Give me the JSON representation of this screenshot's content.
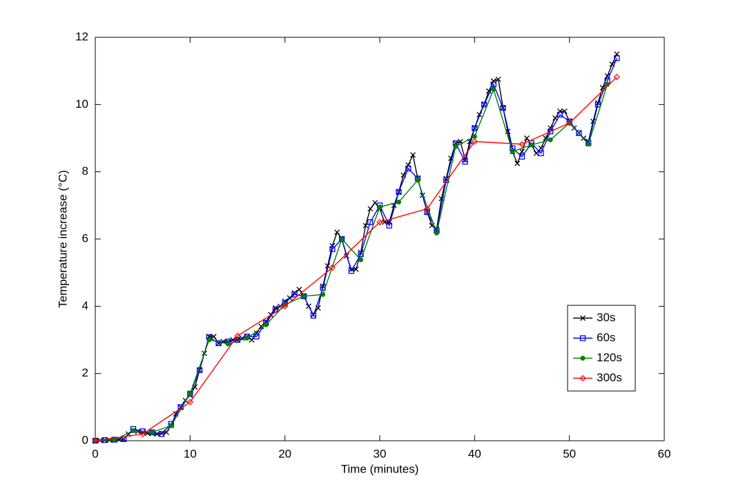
{
  "chart_data": {
    "type": "line",
    "xlabel": "Time (minutes)",
    "ylabel": "Temperature increase (°C)",
    "xlim": [
      0,
      60
    ],
    "xticks": [
      0,
      10,
      20,
      30,
      40,
      50,
      60
    ],
    "ylim": [
      0,
      12
    ],
    "yticks": [
      0,
      2,
      4,
      6,
      8,
      10,
      12
    ],
    "grid": false,
    "legend": "lower right",
    "series": [
      {
        "name": "30s",
        "color": "#000000",
        "marker": "x",
        "x": [
          0,
          0.5,
          1,
          1.5,
          2,
          2.5,
          3,
          3.5,
          4,
          4.5,
          5,
          5.5,
          6,
          6.5,
          7,
          7.5,
          8,
          8.5,
          9,
          9.5,
          10,
          10.5,
          11,
          11.5,
          12,
          12.5,
          13,
          13.5,
          14,
          14.5,
          15,
          15.5,
          16,
          16.5,
          17,
          17.5,
          18,
          18.5,
          19,
          19.5,
          20,
          20.5,
          21,
          21.5,
          22,
          22.5,
          23,
          23.5,
          24,
          24.5,
          25,
          25.5,
          26,
          26.5,
          27,
          27.5,
          28,
          28.5,
          29,
          29.5,
          30,
          30.5,
          31,
          31.5,
          32,
          32.5,
          33,
          33.5,
          34,
          34.5,
          35,
          35.5,
          36,
          36.5,
          37,
          37.5,
          38,
          38.5,
          39,
          39.5,
          40,
          40.5,
          41,
          41.5,
          42,
          42.5,
          43,
          43.5,
          44,
          44.5,
          45,
          45.5,
          46,
          46.5,
          47,
          47.5,
          48,
          48.5,
          49,
          49.5,
          50,
          50.5,
          51,
          51.5,
          52,
          52.5,
          53,
          53.5,
          54,
          54.5,
          55
        ],
        "values": [
          0,
          0.01,
          0.02,
          0.02,
          0.03,
          0.04,
          0.05,
          0.2,
          0.3,
          0.28,
          0.25,
          0.22,
          0.22,
          0.2,
          0.22,
          0.25,
          0.45,
          0.8,
          1.0,
          1.2,
          1.35,
          1.6,
          2.1,
          2.6,
          3.1,
          3.1,
          2.9,
          2.95,
          2.95,
          3.0,
          3.0,
          3.05,
          3.1,
          3.0,
          3.2,
          3.4,
          3.55,
          3.75,
          3.95,
          4.0,
          4.15,
          4.25,
          4.4,
          4.5,
          4.3,
          4.0,
          3.75,
          3.95,
          4.6,
          5.2,
          5.8,
          6.2,
          6.0,
          5.5,
          5.1,
          5.1,
          5.6,
          6.4,
          6.9,
          7.08,
          6.9,
          6.5,
          6.5,
          7.0,
          7.4,
          7.9,
          8.2,
          8.5,
          7.8,
          7.3,
          6.8,
          6.4,
          6.3,
          7.2,
          7.8,
          8.4,
          8.85,
          8.9,
          8.35,
          8.9,
          9.3,
          9.7,
          10.0,
          10.4,
          10.7,
          10.75,
          9.9,
          9.2,
          8.6,
          8.25,
          8.6,
          9.0,
          8.8,
          8.55,
          8.7,
          9.0,
          9.3,
          9.6,
          9.8,
          9.8,
          9.5,
          9.3,
          9.15,
          9.0,
          8.9,
          9.5,
          10.05,
          10.5,
          10.85,
          11.2,
          11.5
        ]
      },
      {
        "name": "60s",
        "color": "#0000ff",
        "marker": "square",
        "x": [
          0,
          1,
          2,
          3,
          4,
          5,
          6,
          7,
          8,
          9,
          10,
          11,
          12,
          13,
          14,
          15,
          16,
          17,
          18,
          19,
          20,
          21,
          22,
          23,
          24,
          25,
          26,
          27,
          28,
          29,
          30,
          31,
          32,
          33,
          34,
          35,
          36,
          37,
          38,
          39,
          40,
          41,
          42,
          43,
          44,
          45,
          46,
          47,
          48,
          49,
          50,
          51,
          52,
          53,
          54,
          55
        ],
        "values": [
          0,
          0.02,
          0.03,
          0.05,
          0.35,
          0.28,
          0.25,
          0.2,
          0.5,
          1.0,
          1.4,
          2.1,
          3.08,
          2.9,
          2.95,
          3.0,
          3.1,
          3.1,
          3.5,
          3.9,
          4.1,
          4.35,
          4.3,
          3.72,
          4.55,
          5.7,
          6.0,
          5.05,
          5.55,
          6.5,
          7.0,
          6.4,
          7.4,
          8.1,
          7.8,
          6.8,
          6.25,
          7.75,
          8.85,
          8.3,
          9.3,
          10.0,
          10.6,
          9.9,
          8.7,
          8.45,
          8.85,
          8.55,
          9.2,
          9.7,
          9.5,
          9.15,
          8.85,
          10.0,
          10.7,
          11.38
        ]
      },
      {
        "name": "120s",
        "color": "#008000",
        "marker": "dot",
        "x": [
          0,
          2,
          4,
          6,
          8,
          10,
          12,
          14,
          16,
          18,
          20,
          22,
          24,
          26,
          28,
          30,
          32,
          34,
          36,
          38,
          40,
          42,
          44,
          46,
          48,
          50,
          52,
          54
        ],
        "values": [
          0,
          0.02,
          0.3,
          0.25,
          0.45,
          1.4,
          3.0,
          2.88,
          3.05,
          3.45,
          4.05,
          4.3,
          4.35,
          6.0,
          5.38,
          6.95,
          7.1,
          7.75,
          6.18,
          8.75,
          9.05,
          10.45,
          8.6,
          8.8,
          8.95,
          9.45,
          8.82,
          10.6
        ]
      },
      {
        "name": "300s",
        "color": "#ff0000",
        "marker": "diamond",
        "x": [
          0,
          5,
          10,
          15,
          20,
          25,
          30,
          35,
          40,
          45,
          50,
          55
        ],
        "values": [
          0,
          0.2,
          1.15,
          3.12,
          4.0,
          5.15,
          6.5,
          6.9,
          8.9,
          8.82,
          9.45,
          10.82
        ]
      }
    ]
  }
}
